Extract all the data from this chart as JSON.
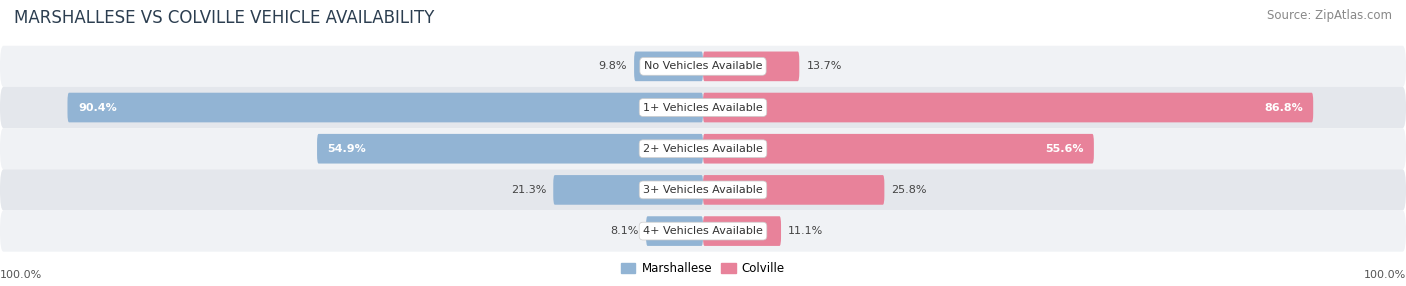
{
  "title": "MARSHALLESE VS COLVILLE VEHICLE AVAILABILITY",
  "source": "Source: ZipAtlas.com",
  "categories": [
    "No Vehicles Available",
    "1+ Vehicles Available",
    "2+ Vehicles Available",
    "3+ Vehicles Available",
    "4+ Vehicles Available"
  ],
  "marshallese_values": [
    9.8,
    90.4,
    54.9,
    21.3,
    8.1
  ],
  "colville_values": [
    13.7,
    86.8,
    55.6,
    25.8,
    11.1
  ],
  "marshallese_color": "#92b4d4",
  "colville_color": "#e8829a",
  "row_bg_light": "#f0f2f5",
  "row_bg_dark": "#e4e7ec",
  "label_bg_color": "#ffffff",
  "title_fontsize": 12,
  "source_fontsize": 8.5,
  "bar_label_fontsize": 8,
  "category_fontsize": 8,
  "legend_fontsize": 8.5,
  "axis_label_fontsize": 8,
  "max_val": 100.0,
  "figure_width": 14.06,
  "figure_height": 2.86
}
